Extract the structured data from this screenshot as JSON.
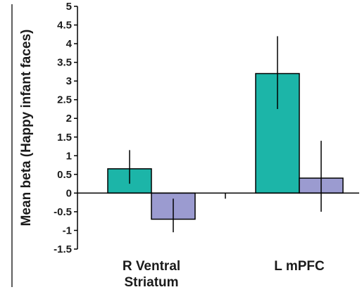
{
  "chart_data": {
    "type": "bar",
    "title": "",
    "xlabel": "",
    "ylabel": "Mean beta (Happy infant faces)",
    "ylim": [
      -1.5,
      5
    ],
    "yticks": [
      5,
      4.5,
      4,
      3.5,
      3,
      2.5,
      2,
      1.5,
      1,
      0.5,
      0,
      -0.5,
      -1,
      -1.5
    ],
    "ytick_labels": [
      "5",
      "4.5",
      "4",
      "3.5",
      "3",
      "2.5",
      "2",
      "1.5",
      "1",
      "0.5",
      "0",
      "-0.5",
      "-1",
      "-1.5"
    ],
    "grid": false,
    "legend": "none",
    "categories": [
      {
        "lines": [
          "R Ventral",
          "Striatum"
        ]
      },
      {
        "lines": [
          "L mPFC"
        ]
      }
    ],
    "series": [
      {
        "values": [
          0.65,
          3.2
        ],
        "err_low": [
          0.25,
          2.25
        ],
        "err_high": [
          1.15,
          4.2
        ],
        "color": "#1cb5a8"
      },
      {
        "values": [
          -0.7,
          0.4
        ],
        "err_low": [
          -1.05,
          -0.5
        ],
        "err_high": [
          -0.15,
          1.4
        ],
        "color": "#9b9bd0"
      }
    ]
  }
}
